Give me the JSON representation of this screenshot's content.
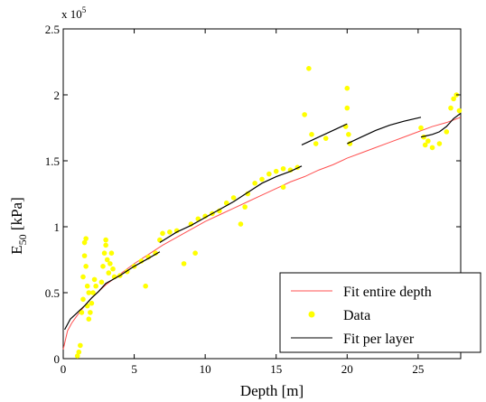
{
  "chart_data": {
    "type": "scatter",
    "title": "",
    "xlabel": "Depth [m]",
    "ylabel_main": "E",
    "ylabel_sub": "50",
    "ylabel_unit": " [kPa]",
    "y_exponent_label": "x 10",
    "y_exponent_power": "5",
    "xlim": [
      0,
      28
    ],
    "ylim": [
      0,
      2.5
    ],
    "x_ticks": [
      0,
      5,
      10,
      15,
      20,
      25
    ],
    "x_tick_labels": [
      "0",
      "5",
      "10",
      "15",
      "20",
      "25"
    ],
    "y_ticks": [
      0,
      0.5,
      1,
      1.5,
      2,
      2.5
    ],
    "y_tick_labels": [
      "0",
      "0.5",
      "1",
      "1.5",
      "2",
      "2.5"
    ],
    "y_scale_note": "values in units of 10^5 kPa",
    "grid": false,
    "legend_position": "bottom-right",
    "legend": [
      {
        "label": "Fit entire depth",
        "color": "#ff5050",
        "style": "line"
      },
      {
        "label": "Data",
        "color": "#ffff00",
        "style": "marker"
      },
      {
        "label": "Fit per layer",
        "color": "#000000",
        "style": "line"
      }
    ],
    "series": [
      {
        "name": "Fit entire depth",
        "type": "line",
        "color": "#ff5050",
        "x": [
          0,
          0.3,
          0.6,
          1,
          1.5,
          2,
          3,
          4,
          5,
          6,
          7,
          8,
          9,
          10,
          11,
          12,
          13,
          14,
          15,
          16,
          17,
          18,
          19,
          20,
          21,
          22,
          23,
          24,
          25,
          26,
          27,
          28
        ],
        "y": [
          0.07,
          0.21,
          0.27,
          0.33,
          0.4,
          0.46,
          0.56,
          0.64,
          0.72,
          0.79,
          0.86,
          0.92,
          0.98,
          1.04,
          1.09,
          1.14,
          1.19,
          1.24,
          1.29,
          1.34,
          1.38,
          1.43,
          1.47,
          1.52,
          1.56,
          1.6,
          1.64,
          1.68,
          1.72,
          1.76,
          1.79,
          1.83
        ]
      },
      {
        "name": "Fit per layer",
        "type": "line",
        "color": "#000000",
        "segments": [
          {
            "x": [
              0.1,
              0.5,
              1,
              1.5,
              2,
              2.5,
              3,
              3.5,
              4,
              5,
              6,
              6.8
            ],
            "y": [
              0.22,
              0.3,
              0.35,
              0.4,
              0.46,
              0.51,
              0.57,
              0.6,
              0.63,
              0.7,
              0.76,
              0.81
            ]
          },
          {
            "x": [
              6.8,
              8,
              9,
              10,
              11,
              12,
              13,
              14,
              15,
              16,
              16.8
            ],
            "y": [
              0.88,
              0.96,
              1.01,
              1.07,
              1.13,
              1.19,
              1.26,
              1.33,
              1.38,
              1.42,
              1.46
            ]
          },
          {
            "x": [
              16.8,
              18,
              19,
              20
            ],
            "y": [
              1.62,
              1.68,
              1.73,
              1.78
            ]
          },
          {
            "x": [
              20,
              21,
              22,
              23,
              24,
              25.2
            ],
            "y": [
              1.63,
              1.68,
              1.73,
              1.77,
              1.8,
              1.83
            ]
          },
          {
            "x": [
              25.2,
              25.6,
              26,
              26.5,
              27,
              27.5,
              28
            ],
            "y": [
              1.68,
              1.69,
              1.7,
              1.72,
              1.76,
              1.82,
              1.86
            ]
          }
        ]
      },
      {
        "name": "Data",
        "type": "scatter",
        "color": "#ffff00",
        "points": [
          [
            1.0,
            0.02
          ],
          [
            1.1,
            0.05
          ],
          [
            1.2,
            0.1
          ],
          [
            1.3,
            0.35
          ],
          [
            1.4,
            0.45
          ],
          [
            1.4,
            0.62
          ],
          [
            1.5,
            0.78
          ],
          [
            1.5,
            0.88
          ],
          [
            1.6,
            0.91
          ],
          [
            1.6,
            0.7
          ],
          [
            1.7,
            0.55
          ],
          [
            1.7,
            0.4
          ],
          [
            1.8,
            0.3
          ],
          [
            1.8,
            0.5
          ],
          [
            1.9,
            0.35
          ],
          [
            2.0,
            0.42
          ],
          [
            2.1,
            0.5
          ],
          [
            2.2,
            0.6
          ],
          [
            2.3,
            0.55
          ],
          [
            2.7,
            0.58
          ],
          [
            2.8,
            0.7
          ],
          [
            2.9,
            0.8
          ],
          [
            3.0,
            0.86
          ],
          [
            3.0,
            0.9
          ],
          [
            3.1,
            0.75
          ],
          [
            3.2,
            0.65
          ],
          [
            3.3,
            0.72
          ],
          [
            3.4,
            0.8
          ],
          [
            3.5,
            0.68
          ],
          [
            3.6,
            0.62
          ],
          [
            4.0,
            0.63
          ],
          [
            4.5,
            0.66
          ],
          [
            5.0,
            0.7
          ],
          [
            5.5,
            0.74
          ],
          [
            6.0,
            0.77
          ],
          [
            6.5,
            0.8
          ],
          [
            5.8,
            0.55
          ],
          [
            6.8,
            0.9
          ],
          [
            7.0,
            0.95
          ],
          [
            7.5,
            0.96
          ],
          [
            8.0,
            0.97
          ],
          [
            8.5,
            0.72
          ],
          [
            9.0,
            1.02
          ],
          [
            9.5,
            1.06
          ],
          [
            10.0,
            1.08
          ],
          [
            10.5,
            1.1
          ],
          [
            11.0,
            1.12
          ],
          [
            11.5,
            1.18
          ],
          [
            12.0,
            1.22
          ],
          [
            12.5,
            1.02
          ],
          [
            13.0,
            1.25
          ],
          [
            13.5,
            1.33
          ],
          [
            14.0,
            1.36
          ],
          [
            14.5,
            1.4
          ],
          [
            15.0,
            1.42
          ],
          [
            15.5,
            1.44
          ],
          [
            16.0,
            1.43
          ],
          [
            16.5,
            1.45
          ],
          [
            12.8,
            1.15
          ],
          [
            9.3,
            0.8
          ],
          [
            15.5,
            1.3
          ],
          [
            17.0,
            1.85
          ],
          [
            17.3,
            2.2
          ],
          [
            17.5,
            1.7
          ],
          [
            17.8,
            1.63
          ],
          [
            18.5,
            1.67
          ],
          [
            19.9,
            1.76
          ],
          [
            20.0,
            2.05
          ],
          [
            20.0,
            1.9
          ],
          [
            20.1,
            1.7
          ],
          [
            20.2,
            1.63
          ],
          [
            25.2,
            1.75
          ],
          [
            25.4,
            1.68
          ],
          [
            25.5,
            1.62
          ],
          [
            25.7,
            1.65
          ],
          [
            26.0,
            1.6
          ],
          [
            26.5,
            1.63
          ],
          [
            27.0,
            1.72
          ],
          [
            27.3,
            1.9
          ],
          [
            27.5,
            1.97
          ],
          [
            27.7,
            2.0
          ],
          [
            27.9,
            1.88
          ]
        ]
      }
    ]
  }
}
